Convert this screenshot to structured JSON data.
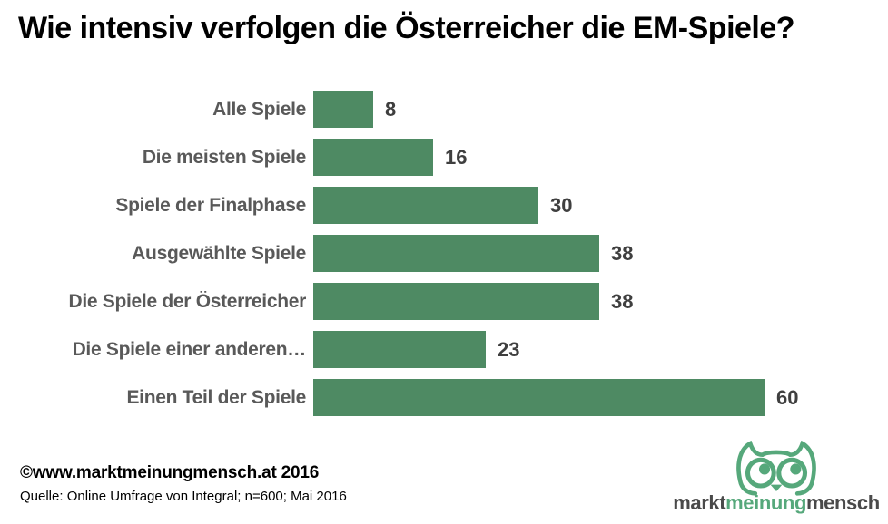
{
  "title": "Wie intensiv verfolgen die Österreicher die EM-Spiele?",
  "chart_data": {
    "type": "bar",
    "orientation": "horizontal",
    "title": "Wie intensiv verfolgen die Österreicher die EM-Spiele?",
    "categories": [
      "Alle Spiele",
      "Die meisten Spiele",
      "Spiele der Finalphase",
      "Ausgewählte Spiele",
      "Die Spiele der Österreicher",
      "Die Spiele einer anderen…",
      "Einen Teil der Spiele"
    ],
    "values": [
      8,
      16,
      30,
      38,
      38,
      23,
      60
    ],
    "xlabel": "",
    "ylabel": "",
    "xlim": [
      0,
      60
    ],
    "grid": false,
    "legend": false,
    "value_labels_shown": true,
    "bar_color": "#4e8a63"
  },
  "colors": {
    "bar": "#4e8a63",
    "category_label": "#595959",
    "value_label": "#3f3f3f",
    "title": "#000000",
    "logo_green": "#56a87b",
    "logo_gray": "#4a4a4a"
  },
  "footer": {
    "copyright": "©www.marktmeinungmensch.at 2016",
    "source": "Quelle: Online Umfrage von Integral; n=600; Mai 2016"
  },
  "logo": {
    "icon": "owl-icon",
    "word1": "markt",
    "word2": "meinung",
    "word3": "mensch"
  }
}
